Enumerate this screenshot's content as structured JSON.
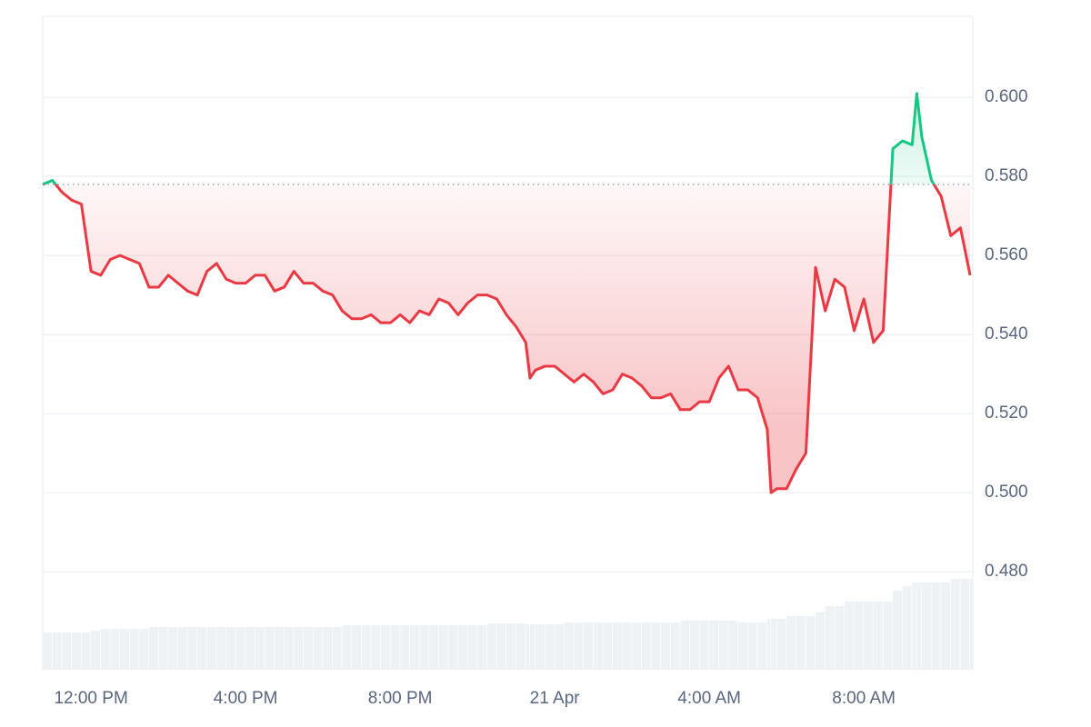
{
  "chart_data": {
    "type": "line",
    "x": [
      10.75,
      11,
      11.25,
      11.5,
      11.75,
      12,
      12.25,
      12.5,
      12.75,
      13,
      13.25,
      13.5,
      13.75,
      14,
      14.25,
      14.5,
      14.75,
      15,
      15.25,
      15.5,
      15.75,
      16,
      16.25,
      16.5,
      16.75,
      17,
      17.25,
      17.5,
      17.75,
      18,
      18.25,
      18.5,
      18.75,
      19,
      19.25,
      19.5,
      19.75,
      20,
      20.25,
      20.5,
      20.75,
      21,
      21.25,
      21.5,
      21.75,
      22,
      22.25,
      22.5,
      22.75,
      23,
      23.25,
      23.36,
      23.5,
      23.75,
      24,
      24.25,
      24.5,
      24.75,
      25,
      25.25,
      25.5,
      25.75,
      26,
      26.25,
      26.5,
      26.75,
      27,
      27.25,
      27.5,
      27.75,
      28,
      28.25,
      28.5,
      28.75,
      29,
      29.25,
      29.5,
      29.6,
      29.75,
      30,
      30.25,
      30.5,
      30.75,
      31,
      31.25,
      31.5,
      31.75,
      32,
      32.25,
      32.5,
      32.75,
      33,
      33.25,
      33.37,
      33.5,
      33.75,
      34,
      34.25,
      34.5,
      34.75
    ],
    "values": [
      0.578,
      0.579,
      0.576,
      0.574,
      0.573,
      0.556,
      0.555,
      0.559,
      0.56,
      0.559,
      0.558,
      0.552,
      0.552,
      0.555,
      0.553,
      0.551,
      0.55,
      0.556,
      0.558,
      0.554,
      0.553,
      0.553,
      0.555,
      0.555,
      0.551,
      0.552,
      0.556,
      0.553,
      0.553,
      0.551,
      0.55,
      0.546,
      0.544,
      0.544,
      0.545,
      0.543,
      0.543,
      0.545,
      0.543,
      0.546,
      0.545,
      0.549,
      0.548,
      0.545,
      0.548,
      0.55,
      0.55,
      0.549,
      0.545,
      0.542,
      0.538,
      0.529,
      0.531,
      0.532,
      0.532,
      0.53,
      0.528,
      0.53,
      0.528,
      0.525,
      0.526,
      0.53,
      0.529,
      0.527,
      0.524,
      0.524,
      0.525,
      0.521,
      0.521,
      0.523,
      0.523,
      0.529,
      0.532,
      0.526,
      0.526,
      0.524,
      0.516,
      0.5,
      0.501,
      0.501,
      0.506,
      0.51,
      0.557,
      0.546,
      0.554,
      0.552,
      0.541,
      0.549,
      0.538,
      0.541,
      0.587,
      0.589,
      0.588,
      0.601,
      0.59,
      0.579,
      0.575,
      0.565,
      0.567,
      0.555
    ],
    "baseline": 0.578,
    "up_color": "#16c784",
    "down_color": "#ea3943",
    "volume": {
      "axis": "y2",
      "color": "#eff2f5",
      "values": [
        41,
        41,
        41,
        41,
        41,
        43,
        45,
        45,
        45,
        45,
        45,
        47,
        47,
        47,
        47,
        47,
        47,
        47,
        47,
        47,
        47,
        47,
        47,
        47,
        47,
        47,
        47,
        47,
        47,
        47,
        47,
        49,
        49,
        49,
        49,
        49,
        49,
        49,
        49,
        49,
        49,
        49,
        49,
        49,
        49,
        49,
        51,
        51,
        51,
        51,
        50,
        50,
        50,
        50,
        50,
        52,
        52,
        52,
        52,
        52,
        52,
        52,
        52,
        52,
        52,
        52,
        52,
        54,
        54,
        54,
        54,
        54,
        54,
        52,
        52,
        52,
        56,
        56,
        56,
        59,
        59,
        59,
        63,
        70,
        70,
        75,
        75,
        75,
        75,
        75,
        87,
        92,
        96,
        96,
        96,
        96,
        96,
        100,
        100,
        100
      ]
    },
    "xlim": [
      10.75,
      34.82
    ],
    "xticks": [
      {
        "value": 12,
        "label": "12:00 PM"
      },
      {
        "value": 16,
        "label": "4:00 PM"
      },
      {
        "value": 20,
        "label": "8:00 PM"
      },
      {
        "value": 24,
        "label": "21 Apr"
      },
      {
        "value": 28,
        "label": "4:00 AM"
      },
      {
        "value": 32,
        "label": "8:00 AM"
      }
    ],
    "ylim": [
      0.4552,
      0.6205
    ],
    "yticks": [
      {
        "value": 0.48,
        "label": "0.480"
      },
      {
        "value": 0.5,
        "label": "0.500"
      },
      {
        "value": 0.52,
        "label": "0.520"
      },
      {
        "value": 0.54,
        "label": "0.540"
      },
      {
        "value": 0.56,
        "label": "0.560"
      },
      {
        "value": 0.58,
        "label": "0.580"
      },
      {
        "value": 0.6,
        "label": "0.600"
      }
    ],
    "y2lim": [
      0,
      719
    ],
    "grid": true
  }
}
